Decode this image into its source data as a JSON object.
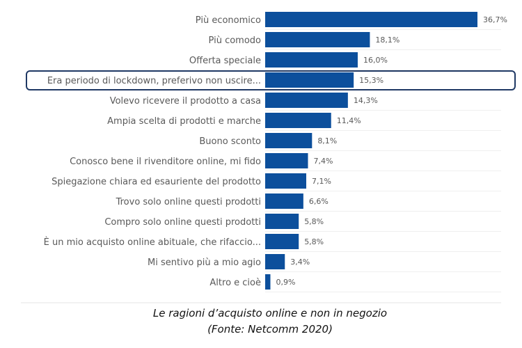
{
  "chart_data": {
    "type": "bar",
    "orientation": "horizontal",
    "categories": [
      "Più economico",
      "Più comodo",
      "Offerta speciale",
      "Era periodo di lockdown, preferivo non uscire...",
      "Volevo ricevere il prodotto a casa",
      "Ampia scelta di prodotti e marche",
      "Buono sconto",
      "Conosco bene il rivenditore online, mi fido",
      "Spiegazione chiara ed esauriente del prodotto",
      "Trovo solo online questi prodotti",
      "Compro solo online questi prodotti",
      "È un mio acquisto online abituale, che rifaccio...",
      "Mi sentivo più a mio agio",
      "Altro e cioè"
    ],
    "values": [
      36.7,
      18.1,
      16.0,
      15.3,
      14.3,
      11.4,
      8.1,
      7.4,
      7.1,
      6.6,
      5.8,
      5.8,
      3.4,
      0.9
    ],
    "value_labels": [
      "36,7%",
      "18,1%",
      "16,0%",
      "15,3%",
      "14,3%",
      "11,4%",
      "8,1%",
      "7,4%",
      "7,1%",
      "6,6%",
      "5,8%",
      "5,8%",
      "3,4%",
      "0,9%"
    ],
    "highlighted_category": "Era periodo di lockdown, preferivo non uscire...",
    "xlim": [
      0,
      36.7
    ],
    "grid": true,
    "bar_color": "#0c4f9c",
    "highlight_color": "#1f3864",
    "caption": [
      "Le ragioni d’acquisto online e non in negozio",
      "(Fonte: Netcomm 2020)"
    ]
  }
}
